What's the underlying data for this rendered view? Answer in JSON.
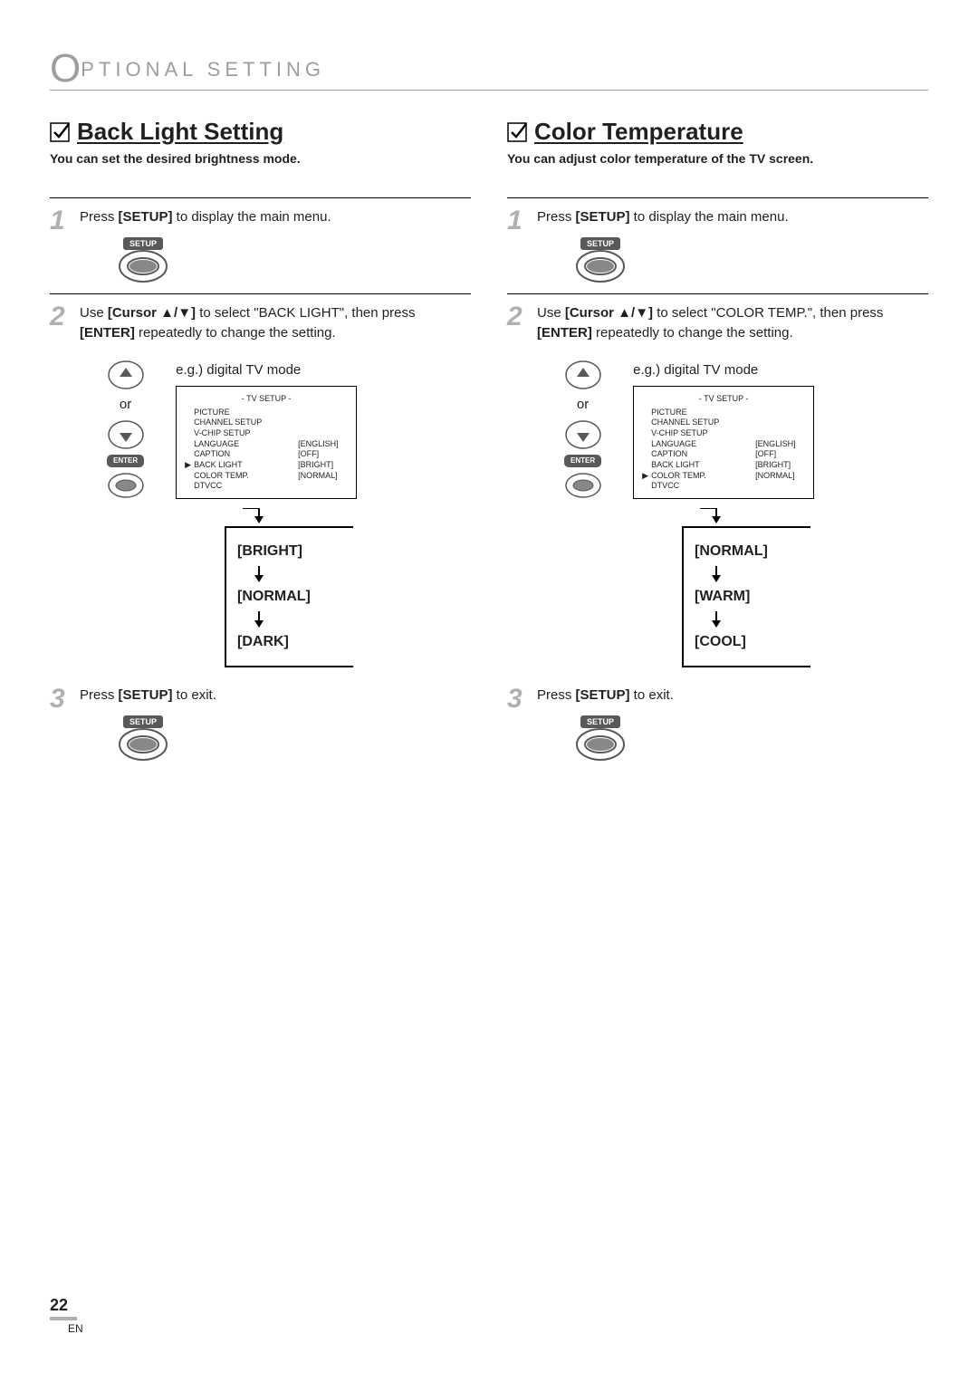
{
  "header": {
    "letter": "O",
    "text": "PTIONAL   SETTING"
  },
  "left": {
    "title": "Back Light Setting",
    "subtitle": "You can set the desired brightness mode.",
    "step1": {
      "pre": "Press ",
      "bold1": "[SETUP]",
      "post": " to display the main menu."
    },
    "step2": {
      "pre": "Use ",
      "bold1": "[Cursor ▲/▼]",
      "mid": " to select \"BACK LIGHT\", then press ",
      "bold2": "[ENTER]",
      "post": " repeatedly to change the setting."
    },
    "eg": "e.g.) digital TV mode",
    "or": "or",
    "enter": "ENTER",
    "menu": {
      "title": "-   TV SETUP   -",
      "rows": [
        {
          "ptr": "",
          "label": "PICTURE",
          "val": ""
        },
        {
          "ptr": "",
          "label": "CHANNEL SETUP",
          "val": ""
        },
        {
          "ptr": "",
          "label": "V-CHIP  SETUP",
          "val": ""
        },
        {
          "ptr": "",
          "label": "LANGUAGE",
          "val": "[ENGLISH]"
        },
        {
          "ptr": "",
          "label": "CAPTION",
          "val": "[OFF]"
        },
        {
          "ptr": "▶",
          "label": "BACK  LIGHT",
          "val": "[BRIGHT]"
        },
        {
          "ptr": "",
          "label": "COLOR  TEMP.",
          "val": "[NORMAL]"
        },
        {
          "ptr": "",
          "label": "DTVCC",
          "val": ""
        }
      ]
    },
    "flow": [
      "[BRIGHT]",
      "[NORMAL]",
      "[DARK]"
    ],
    "step3": {
      "pre": "Press ",
      "bold1": "[SETUP]",
      "post": " to exit."
    }
  },
  "right": {
    "title": "Color Temperature",
    "subtitle": "You can adjust color temperature of the TV screen.",
    "step1": {
      "pre": "Press ",
      "bold1": "[SETUP]",
      "post": " to display the main menu."
    },
    "step2": {
      "pre": "Use ",
      "bold1": "[Cursor ▲/▼]",
      "mid": " to select \"COLOR TEMP.\", then press ",
      "bold2": "[ENTER]",
      "post": " repeatedly to change the setting."
    },
    "eg": "e.g.) digital TV mode",
    "or": "or",
    "enter": "ENTER",
    "menu": {
      "title": "-   TV SETUP   -",
      "rows": [
        {
          "ptr": "",
          "label": "PICTURE",
          "val": ""
        },
        {
          "ptr": "",
          "label": "CHANNEL SETUP",
          "val": ""
        },
        {
          "ptr": "",
          "label": "V-CHIP  SETUP",
          "val": ""
        },
        {
          "ptr": "",
          "label": "LANGUAGE",
          "val": "[ENGLISH]"
        },
        {
          "ptr": "",
          "label": "CAPTION",
          "val": "[OFF]"
        },
        {
          "ptr": "",
          "label": "BACK  LIGHT",
          "val": "[BRIGHT]"
        },
        {
          "ptr": "▶",
          "label": "COLOR  TEMP.",
          "val": "[NORMAL]"
        },
        {
          "ptr": "",
          "label": "DTVCC",
          "val": ""
        }
      ]
    },
    "flow": [
      "[NORMAL]",
      "[WARM]",
      "[COOL]"
    ],
    "step3": {
      "pre": "Press ",
      "bold1": "[SETUP]",
      "post": " to exit."
    }
  },
  "footer": {
    "page": "22",
    "lang": "EN"
  },
  "setup_label": "SETUP",
  "colors": {
    "gray": "#9e9e9e",
    "darkgray": "#595959",
    "stepnum": "#b0b0b0",
    "text": "#231f20"
  }
}
